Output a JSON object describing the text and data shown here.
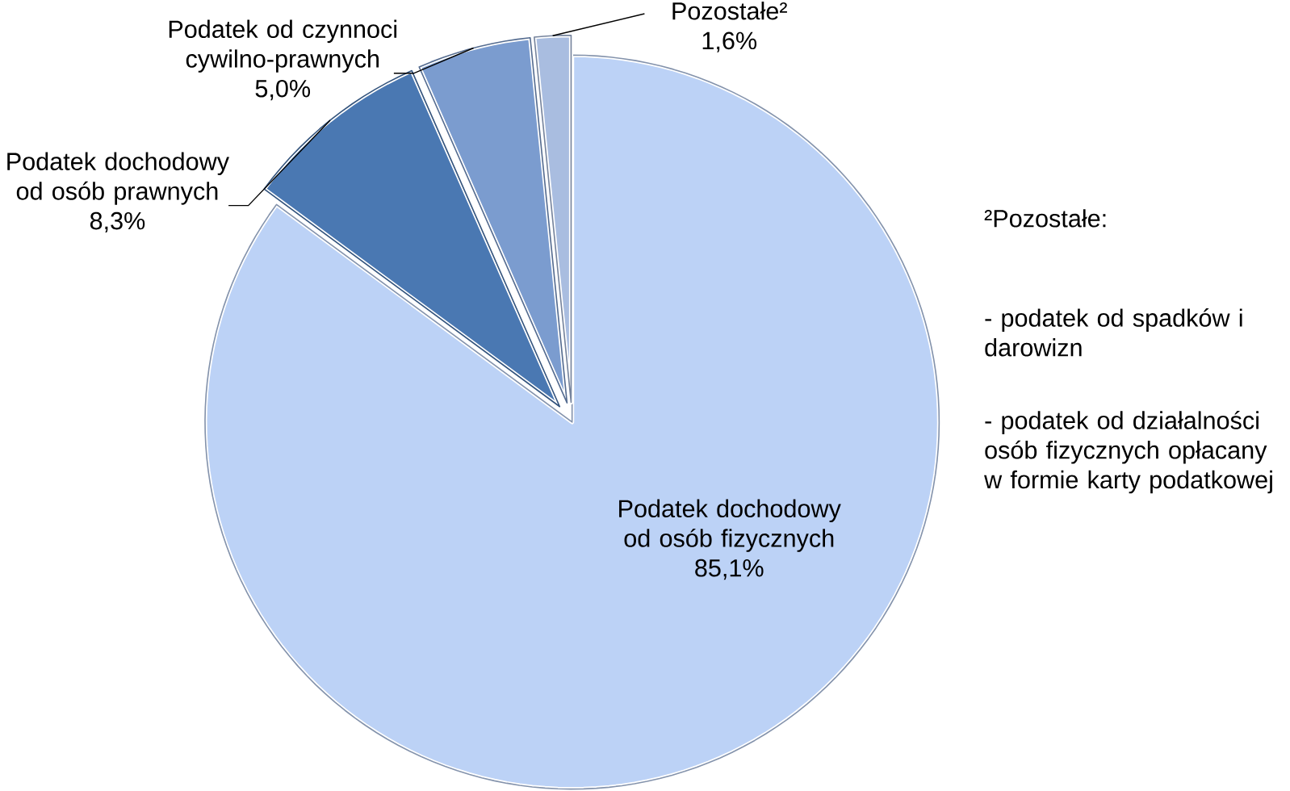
{
  "chart_data": {
    "type": "pie",
    "categories": [
      "Podatek dochodowy od osób fizycznych",
      "Podatek dochodowy  od osób prawnych",
      "Podatek od czynnoci cywilno-prawnych",
      "Pozostałe²"
    ],
    "values": [
      85.1,
      8.3,
      5.0,
      1.6
    ],
    "value_labels": [
      "85,1%",
      "8,3%",
      "5,0%",
      "1,6%"
    ],
    "colors": [
      "#bcd2f6",
      "#4a78b2",
      "#7b9ccf",
      "#a9bde0"
    ],
    "annotations": [
      "²Pozostałe:",
      "- podatek od spadków i darowizn",
      "- podatek od działalności osób fizycznych opłacany w formie karty podatkowej"
    ]
  }
}
